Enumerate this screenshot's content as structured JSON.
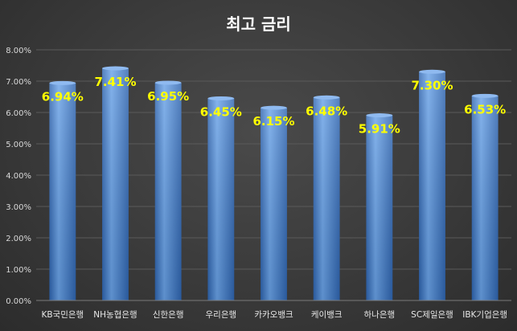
{
  "chart_data": {
    "type": "bar",
    "title": "최고 금리",
    "categories": [
      "KB국민은행",
      "NH농협은행",
      "신한은행",
      "우리은행",
      "카카오뱅크",
      "케이뱅크",
      "하나은행",
      "SC제일은행",
      "IBK기업은행"
    ],
    "values": [
      6.94,
      7.41,
      6.95,
      6.45,
      6.15,
      6.48,
      5.91,
      7.3,
      6.53
    ],
    "data_labels": [
      "6.94%",
      "7.41%",
      "6.95%",
      "6.45%",
      "6.15%",
      "6.48%",
      "5.91%",
      "7.30%",
      "6.53%"
    ],
    "y_ticks": [
      "0.00%",
      "1.00%",
      "2.00%",
      "3.00%",
      "4.00%",
      "5.00%",
      "6.00%",
      "7.00%",
      "8.00%"
    ],
    "ylim": [
      0,
      8
    ],
    "grid": true,
    "legend": "none",
    "colors": {
      "bar_top": "#6aa3e8",
      "bar_mid": "#4a86d4",
      "bar_bottom": "#2f65b0",
      "data_label": "#ffff00",
      "grid": "#5a5a5a",
      "axis_text": "#d9d9d9"
    }
  }
}
